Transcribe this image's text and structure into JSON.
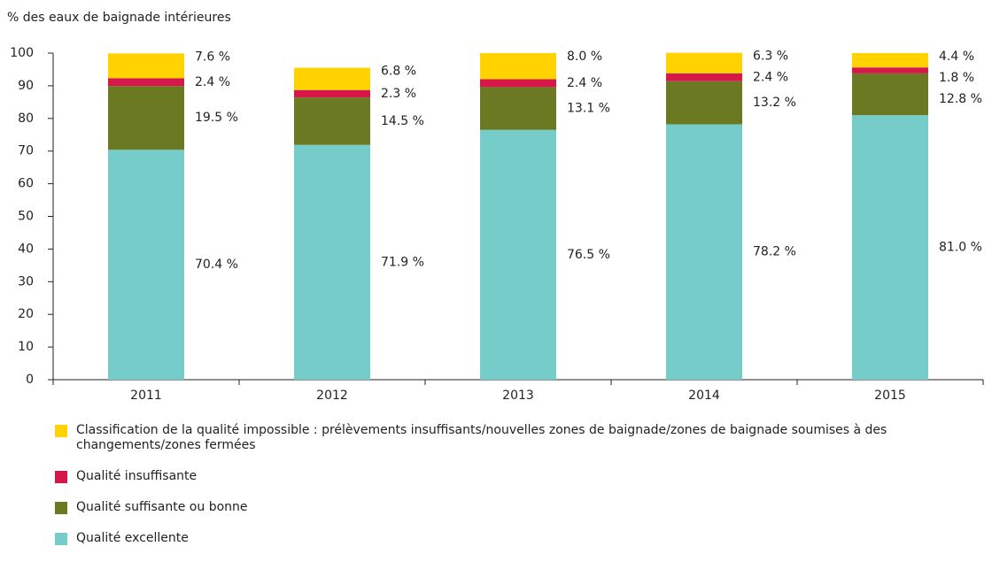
{
  "chart_data": {
    "type": "stacked_bar",
    "y_axis_label": "% des eaux de baignade intérieures",
    "categories": [
      "2011",
      "2012",
      "2013",
      "2014",
      "2015"
    ],
    "series": [
      {
        "name": "Qualité excellente",
        "color": "#76ccc9",
        "values": [
          70.4,
          71.9,
          76.5,
          78.2,
          81.0
        ],
        "value_labels": [
          "70.4 %",
          "71.9 %",
          "76.5 %",
          "78.2 %",
          "81.0 %"
        ]
      },
      {
        "name": "Qualité suffisante ou bonne",
        "color": "#6b7a22",
        "values": [
          19.5,
          14.5,
          13.1,
          13.2,
          12.8
        ],
        "value_labels": [
          "19.5 %",
          "14.5 %",
          "13.1 %",
          "13.2 %",
          "12.8 %"
        ]
      },
      {
        "name": "Qualité insuffisante",
        "color": "#d5174a",
        "values": [
          2.4,
          2.3,
          2.4,
          2.4,
          1.8
        ],
        "value_labels": [
          "2.4 %",
          "2.3 %",
          "2.4 %",
          "2.4 %",
          "1.8 %"
        ]
      },
      {
        "name": "Classification de la qualité impossible : prélèvements insuffisants/nouvelles zones de baignade/zones de baignade soumises à des changements/zones fermées",
        "color": "#ffd200",
        "values": [
          7.6,
          6.8,
          8.0,
          6.3,
          4.4
        ],
        "value_labels": [
          "7.6 %",
          "6.8 %",
          "8.0 %",
          "6.3 %",
          "4.4 %"
        ]
      }
    ],
    "ylim": [
      0,
      100
    ],
    "yticks": [
      0,
      10,
      20,
      30,
      40,
      50,
      60,
      70,
      80,
      90,
      100
    ],
    "grid": false
  }
}
